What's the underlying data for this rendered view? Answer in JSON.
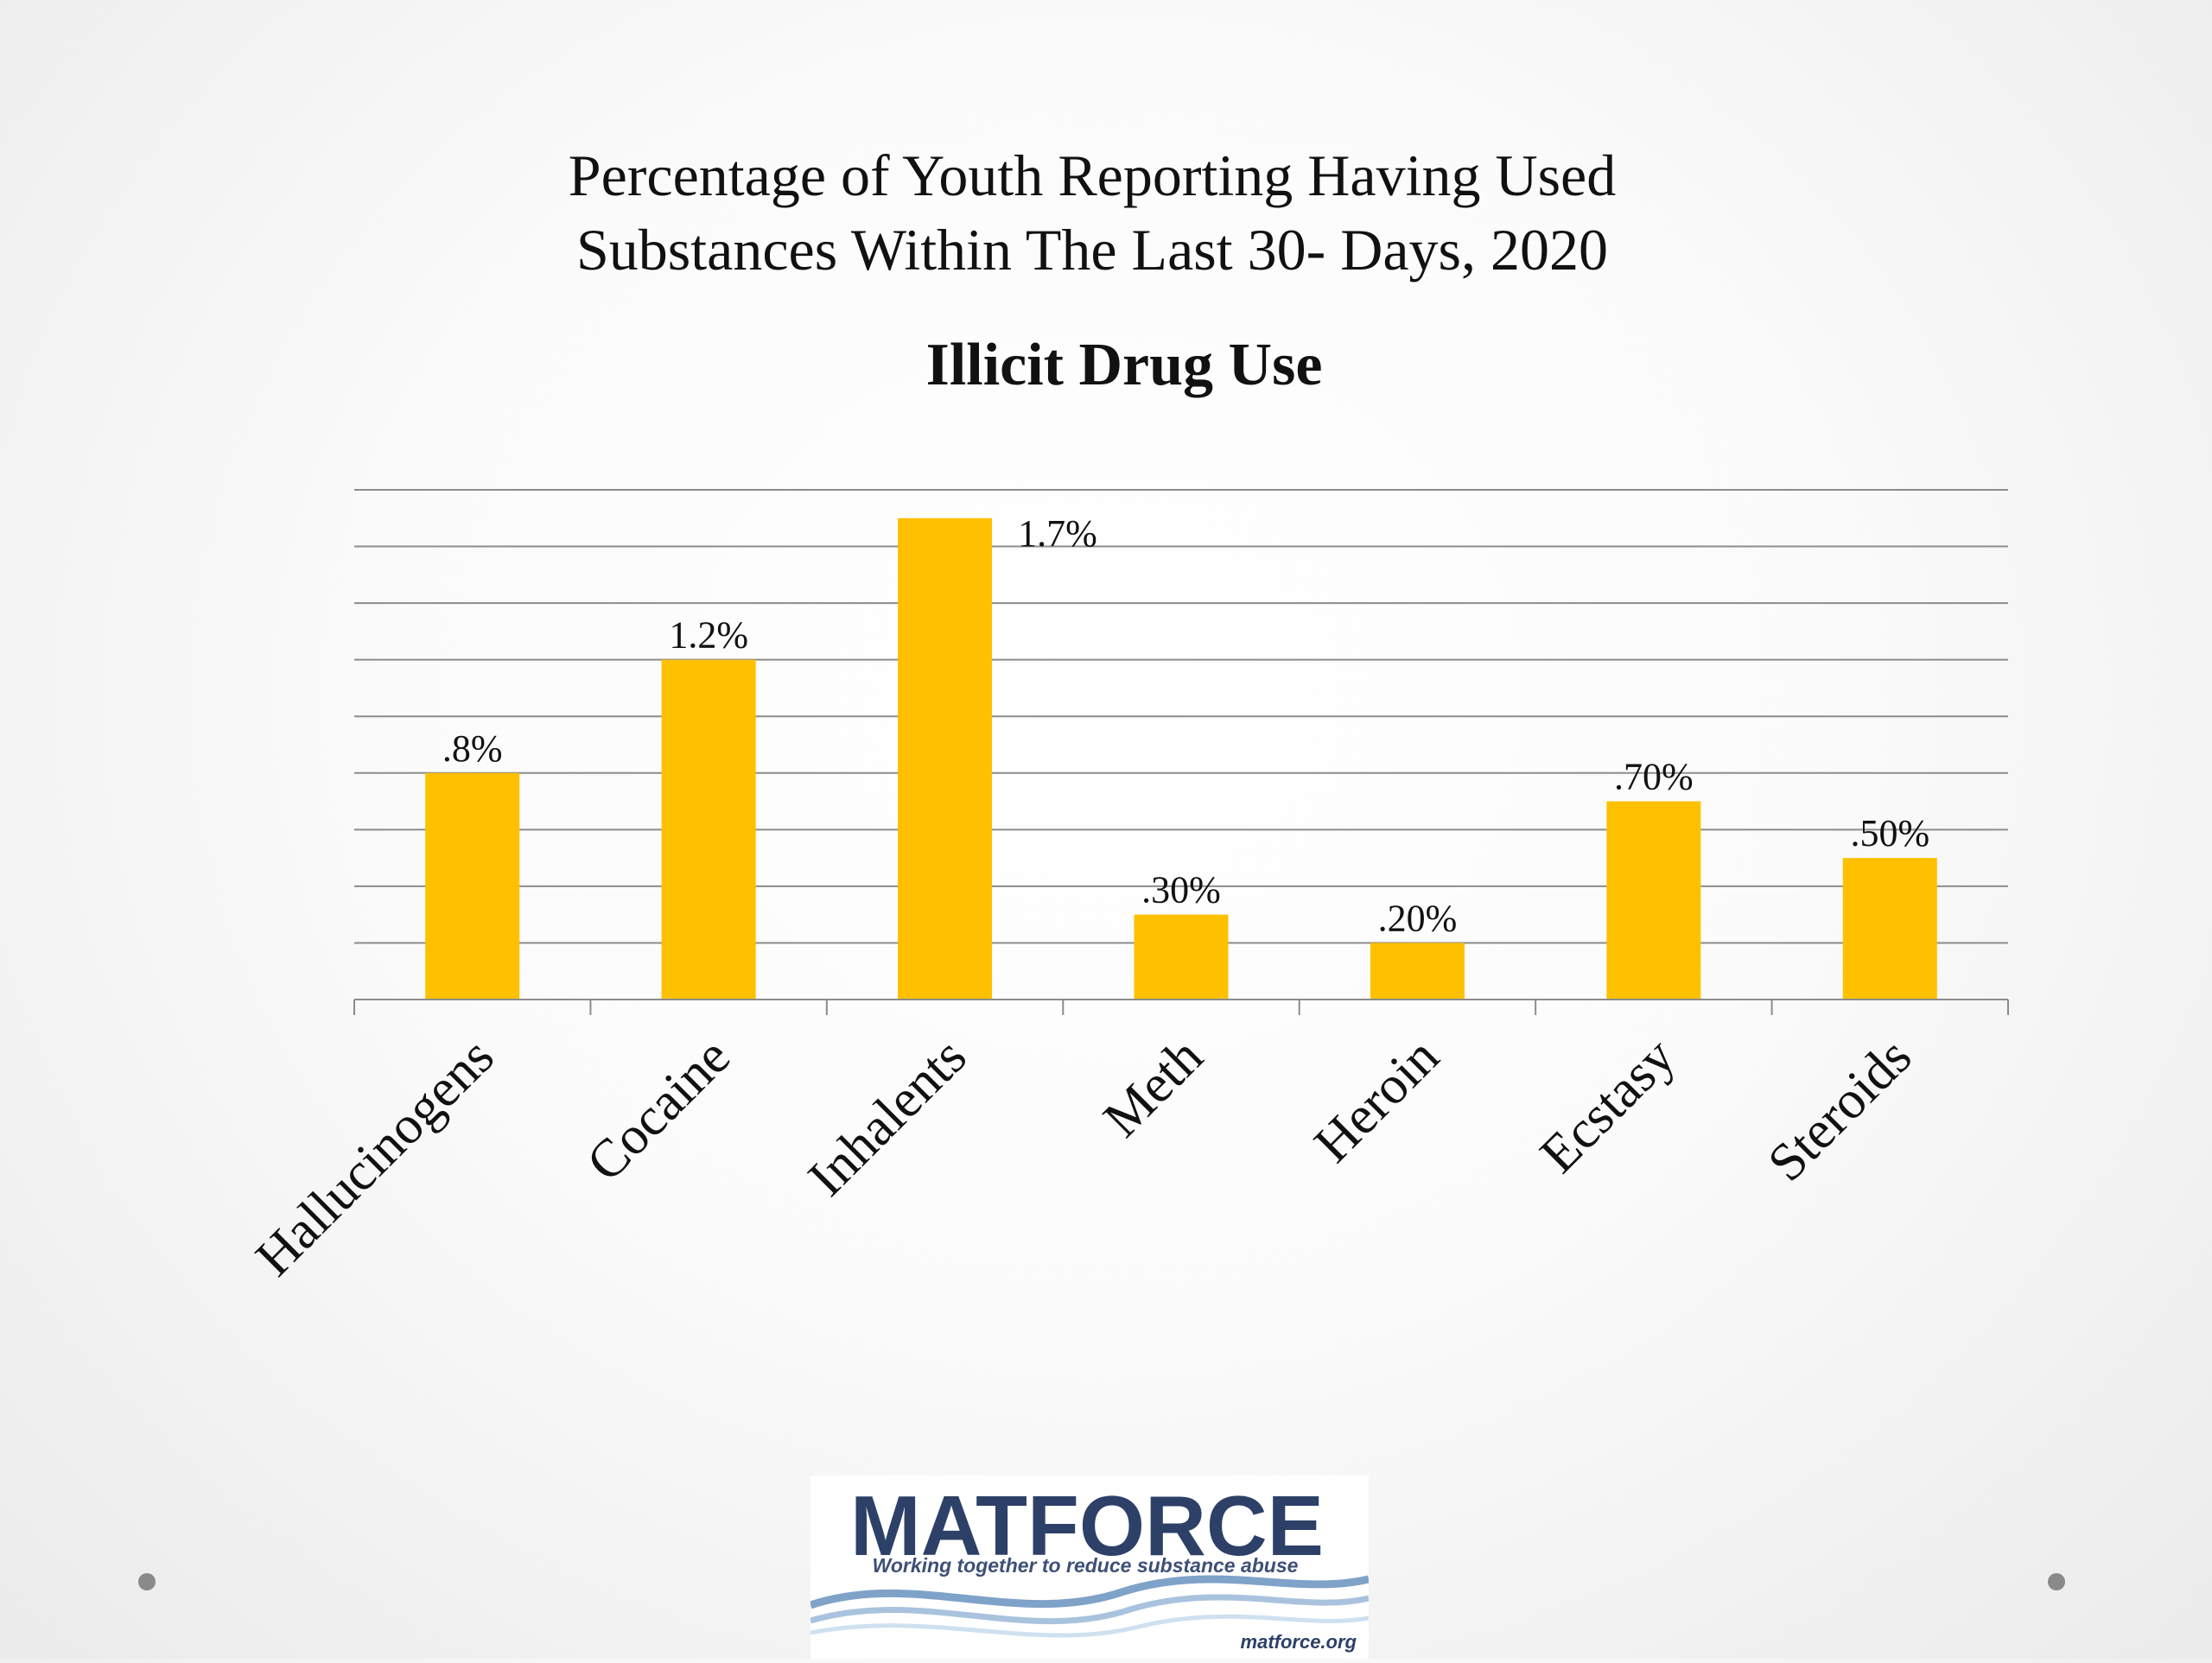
{
  "slide": {
    "title_line1": "Percentage of Youth Reporting Having Used",
    "title_line2": "Substances Within The Last 30- Days, 2020"
  },
  "chart_data": {
    "type": "bar",
    "title": "Illicit Drug Use",
    "categories": [
      "Hallucinogens",
      "Cocaine",
      "Inhalents",
      "Meth",
      "Heroin",
      "Ecstasy",
      "Steroids"
    ],
    "values": [
      0.8,
      1.2,
      1.7,
      0.3,
      0.2,
      0.7,
      0.5
    ],
    "data_labels": [
      ".8%",
      "1.2%",
      "1.7%",
      ".30%",
      ".20%",
      ".70%",
      ".50%"
    ],
    "ylim": [
      0,
      1.8
    ],
    "gridlines": true,
    "bar_color": "#FFC000"
  },
  "logo": {
    "name": "MATFORCE",
    "tagline": "Working together to reduce substance abuse",
    "url": "matforce.org",
    "text_color": "#2d4067"
  }
}
